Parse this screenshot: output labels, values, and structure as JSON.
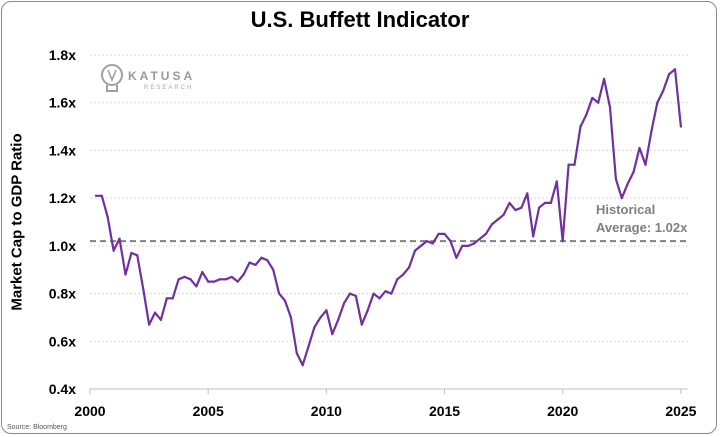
{
  "logo": {
    "name": "KATUSA",
    "sub": "RESEARCH"
  },
  "source": "Source: Bloomberg",
  "chart_data": {
    "type": "line",
    "title": "U.S. Buffett Indicator",
    "xlabel": "",
    "ylabel": "Market Cap to GDP Ratio",
    "xlim": [
      2000,
      2025.3
    ],
    "ylim": [
      0.4,
      1.8
    ],
    "x_ticks": [
      2000,
      2005,
      2010,
      2015,
      2020,
      2025
    ],
    "y_ticks": [
      0.4,
      0.6,
      0.8,
      1.0,
      1.2,
      1.4,
      1.6,
      1.8
    ],
    "y_tick_labels": [
      "0.4x",
      "0.6x",
      "0.8x",
      "1.0x",
      "1.2x",
      "1.4x",
      "1.6x",
      "1.8x"
    ],
    "grid": "horizontal dotted",
    "series": [
      {
        "color": "#7030a0",
        "x": [
          2000.25,
          2000.5,
          2000.75,
          2001.0,
          2001.25,
          2001.5,
          2001.75,
          2002.0,
          2002.25,
          2002.5,
          2002.75,
          2003.0,
          2003.25,
          2003.5,
          2003.75,
          2004.0,
          2004.25,
          2004.5,
          2004.75,
          2005.0,
          2005.25,
          2005.5,
          2005.75,
          2006.0,
          2006.25,
          2006.5,
          2006.75,
          2007.0,
          2007.25,
          2007.5,
          2007.75,
          2008.0,
          2008.25,
          2008.5,
          2008.75,
          2009.0,
          2009.25,
          2009.5,
          2009.75,
          2010.0,
          2010.25,
          2010.5,
          2010.75,
          2011.0,
          2011.25,
          2011.5,
          2011.75,
          2012.0,
          2012.25,
          2012.5,
          2012.75,
          2013.0,
          2013.25,
          2013.5,
          2013.75,
          2014.0,
          2014.25,
          2014.5,
          2014.75,
          2015.0,
          2015.25,
          2015.5,
          2015.75,
          2016.0,
          2016.25,
          2016.5,
          2016.75,
          2017.0,
          2017.25,
          2017.5,
          2017.75,
          2018.0,
          2018.25,
          2018.5,
          2018.75,
          2019.0,
          2019.25,
          2019.5,
          2019.75,
          2020.0,
          2020.25,
          2020.5,
          2020.75,
          2021.0,
          2021.25,
          2021.5,
          2021.75,
          2022.0,
          2022.25,
          2022.5,
          2022.75,
          2023.0,
          2023.25,
          2023.5,
          2023.75,
          2024.0,
          2024.25,
          2024.5,
          2024.75,
          2025.0
        ],
        "values": [
          1.21,
          1.21,
          1.12,
          0.98,
          1.03,
          0.88,
          0.97,
          0.96,
          0.82,
          0.67,
          0.72,
          0.69,
          0.78,
          0.78,
          0.86,
          0.87,
          0.86,
          0.83,
          0.89,
          0.85,
          0.85,
          0.86,
          0.86,
          0.87,
          0.85,
          0.88,
          0.93,
          0.92,
          0.95,
          0.94,
          0.9,
          0.8,
          0.77,
          0.7,
          0.55,
          0.5,
          0.58,
          0.66,
          0.7,
          0.73,
          0.63,
          0.69,
          0.76,
          0.8,
          0.79,
          0.67,
          0.73,
          0.8,
          0.78,
          0.81,
          0.8,
          0.86,
          0.88,
          0.91,
          0.98,
          1.0,
          1.02,
          1.01,
          1.05,
          1.05,
          1.02,
          0.95,
          1.0,
          1.0,
          1.01,
          1.03,
          1.05,
          1.09,
          1.11,
          1.13,
          1.18,
          1.15,
          1.16,
          1.22,
          1.04,
          1.16,
          1.18,
          1.18,
          1.27,
          1.02,
          1.34,
          1.34,
          1.5,
          1.55,
          1.62,
          1.6,
          1.7,
          1.58,
          1.28,
          1.2,
          1.26,
          1.31,
          1.41,
          1.34,
          1.48,
          1.6,
          1.65,
          1.72,
          1.74,
          1.5
        ]
      }
    ],
    "reference_line": {
      "value": 1.02,
      "label_line1": "Historical",
      "label_line2": "Average: 1.02x",
      "color": "#808080",
      "style": "dashed"
    }
  }
}
